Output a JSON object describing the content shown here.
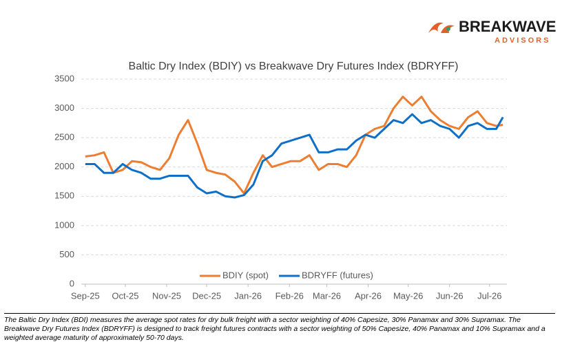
{
  "logo": {
    "name": "BREAKWAVE",
    "subtitle": "ADVISORS"
  },
  "chart_data": {
    "type": "line",
    "title": "Baltic Dry Index (BDIY) vs Breakwave Dry Futures Index (BDRYFF)",
    "x": [
      0,
      7,
      14,
      21,
      28,
      35,
      42,
      49,
      56,
      63,
      70,
      77,
      84,
      91,
      98,
      105,
      112,
      119,
      126,
      133,
      140,
      147,
      154,
      161,
      168,
      175,
      182,
      189,
      196,
      203,
      210,
      217,
      224,
      231,
      238,
      245,
      252,
      259,
      266,
      273,
      280,
      287,
      294,
      301,
      308,
      313
    ],
    "xlim": [
      -3,
      316
    ],
    "xticks": [
      {
        "value": 0,
        "label": "Sep-25"
      },
      {
        "value": 30,
        "label": "Oct-25"
      },
      {
        "value": 61,
        "label": "Nov-25"
      },
      {
        "value": 91,
        "label": "Dec-25"
      },
      {
        "value": 122,
        "label": "Jan-26"
      },
      {
        "value": 153,
        "label": "Feb-26"
      },
      {
        "value": 181,
        "label": "Mar-26"
      },
      {
        "value": 212,
        "label": "Apr-26"
      },
      {
        "value": 242,
        "label": "May-26"
      },
      {
        "value": 273,
        "label": "Jun-26"
      },
      {
        "value": 303,
        "label": "Jul-26"
      }
    ],
    "ylim": [
      0,
      3500
    ],
    "yticks": [
      0,
      500,
      1000,
      1500,
      2000,
      2500,
      3000,
      3500
    ],
    "grid": true,
    "legend": "bottom",
    "series": [
      {
        "name": "BDIY (spot)",
        "color": "#ed7d31",
        "values": [
          2180,
          2200,
          2250,
          1900,
          1950,
          2100,
          2080,
          2000,
          1950,
          2150,
          2550,
          2800,
          2400,
          1950,
          1900,
          1870,
          1750,
          1550,
          1900,
          2200,
          2000,
          2050,
          2100,
          2100,
          2200,
          1950,
          2050,
          2050,
          2000,
          2200,
          2550,
          2650,
          2700,
          3000,
          3200,
          3050,
          3200,
          2950,
          2800,
          2700,
          2650,
          2850,
          2950,
          2750,
          2700,
          2720
        ]
      },
      {
        "name": "BDRYFF (futures)",
        "color": "#0f6fc6",
        "values": [
          2050,
          2050,
          1900,
          1900,
          2050,
          1950,
          1900,
          1800,
          1800,
          1850,
          1850,
          1850,
          1650,
          1550,
          1580,
          1500,
          1480,
          1520,
          1700,
          2100,
          2200,
          2400,
          2450,
          2500,
          2550,
          2250,
          2250,
          2300,
          2300,
          2450,
          2550,
          2500,
          2650,
          2800,
          2750,
          2900,
          2750,
          2800,
          2700,
          2650,
          2500,
          2700,
          2750,
          2650,
          2650,
          2850
        ]
      }
    ]
  },
  "footnote": "The Baltic Dry Index (BDI) measures the average spot rates for dry bulk freight with a sector weighting of 40% Capesize, 30% Panamax and 30% Supramax. The Breakwave Dry Futures Index (BDRYFF) is designed to track freight futures contracts with a sector weighting of 50% Capesize, 40% Panamax and 10% Supramax and a weighted average maturity of approximately 50-70 days."
}
